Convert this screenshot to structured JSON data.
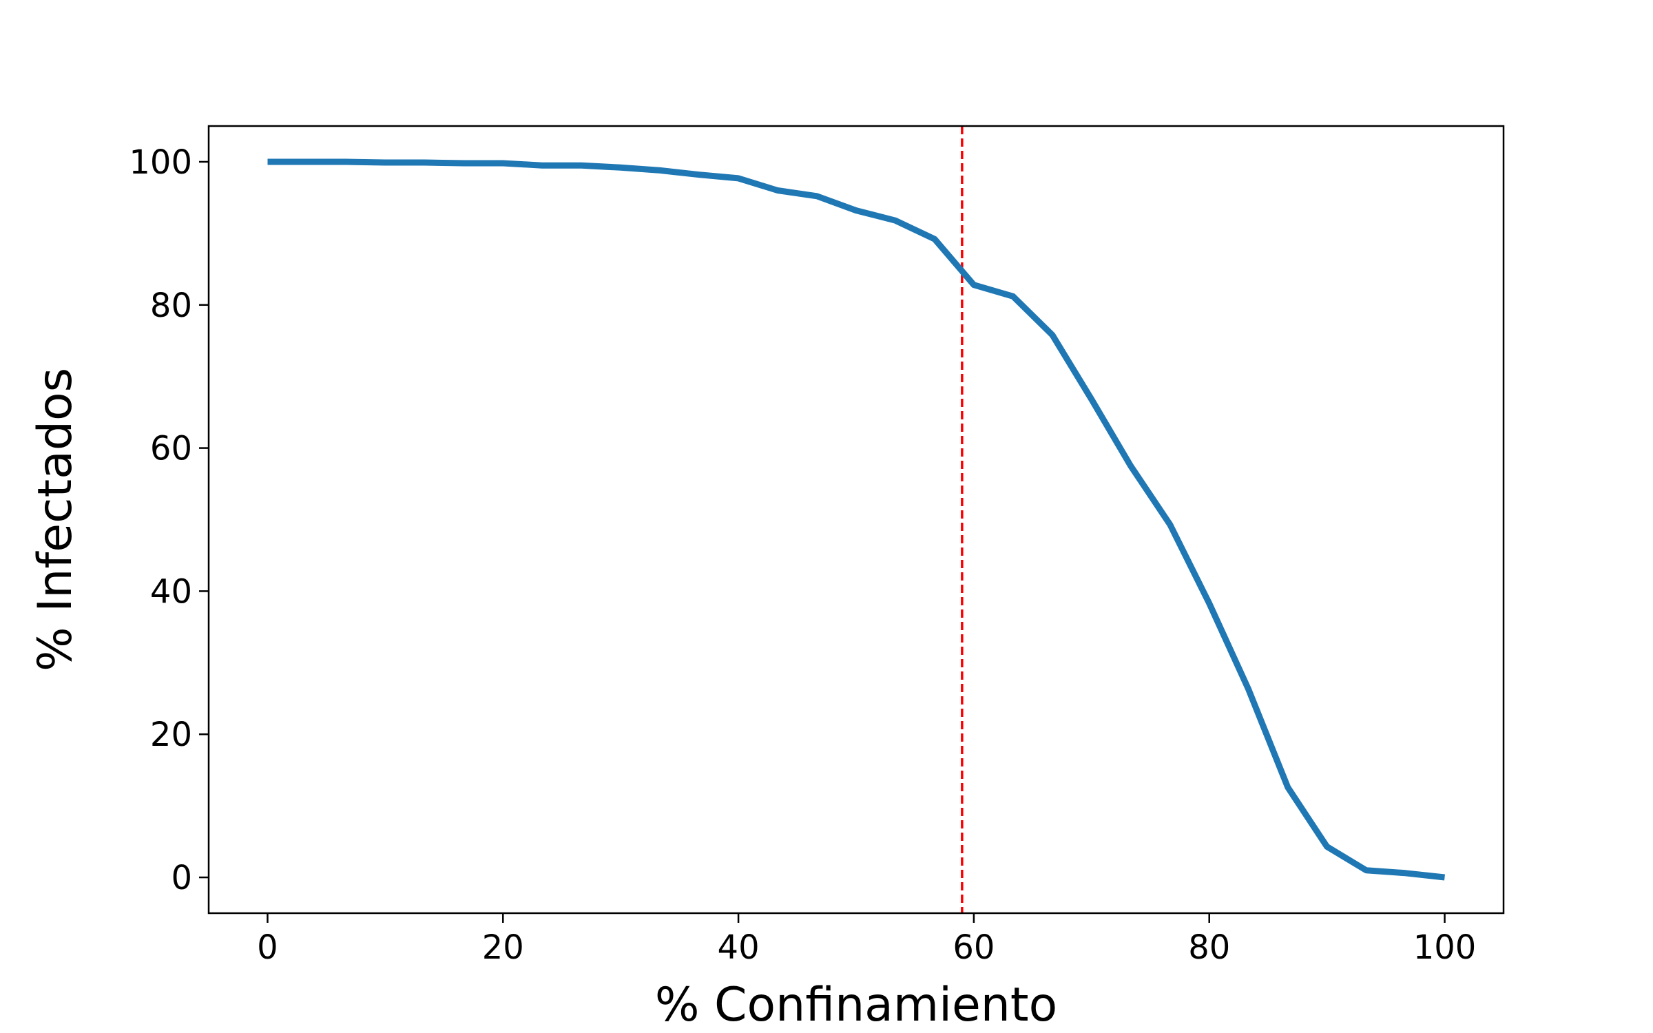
{
  "chart_data": {
    "type": "line",
    "title": "",
    "xlabel": "% Confinamiento",
    "ylabel": "% Infectados",
    "xlim": [
      -5,
      105
    ],
    "ylim": [
      -5,
      105
    ],
    "xticks": [
      0,
      20,
      40,
      60,
      80,
      100
    ],
    "yticks": [
      0,
      20,
      40,
      60,
      80,
      100
    ],
    "grid": false,
    "series": [
      {
        "name": "",
        "color": "#1f77b4",
        "x": [
          0,
          3.33,
          6.67,
          10,
          13.33,
          16.67,
          20,
          23.33,
          26.67,
          30,
          33.33,
          36.67,
          40,
          43.33,
          46.67,
          50,
          53.33,
          56.67,
          60,
          63.33,
          66.67,
          70,
          73.33,
          76.67,
          80,
          83.33,
          86.67,
          90,
          93.33,
          96.67,
          100
        ],
        "y": [
          100,
          100,
          100,
          99.9,
          99.9,
          99.8,
          99.8,
          99.5,
          99.5,
          99.2,
          98.8,
          98.2,
          97.7,
          96,
          95.2,
          93.2,
          91.8,
          89.2,
          82.8,
          81.2,
          75.8,
          66.8,
          57.5,
          49.3,
          38.3,
          26.3,
          12.6,
          4.3,
          1.0,
          0.6,
          0
        ]
      }
    ],
    "reference_line": {
      "orientation": "vertical",
      "x": 59,
      "color": "#ff0000",
      "style": "dashed"
    }
  }
}
